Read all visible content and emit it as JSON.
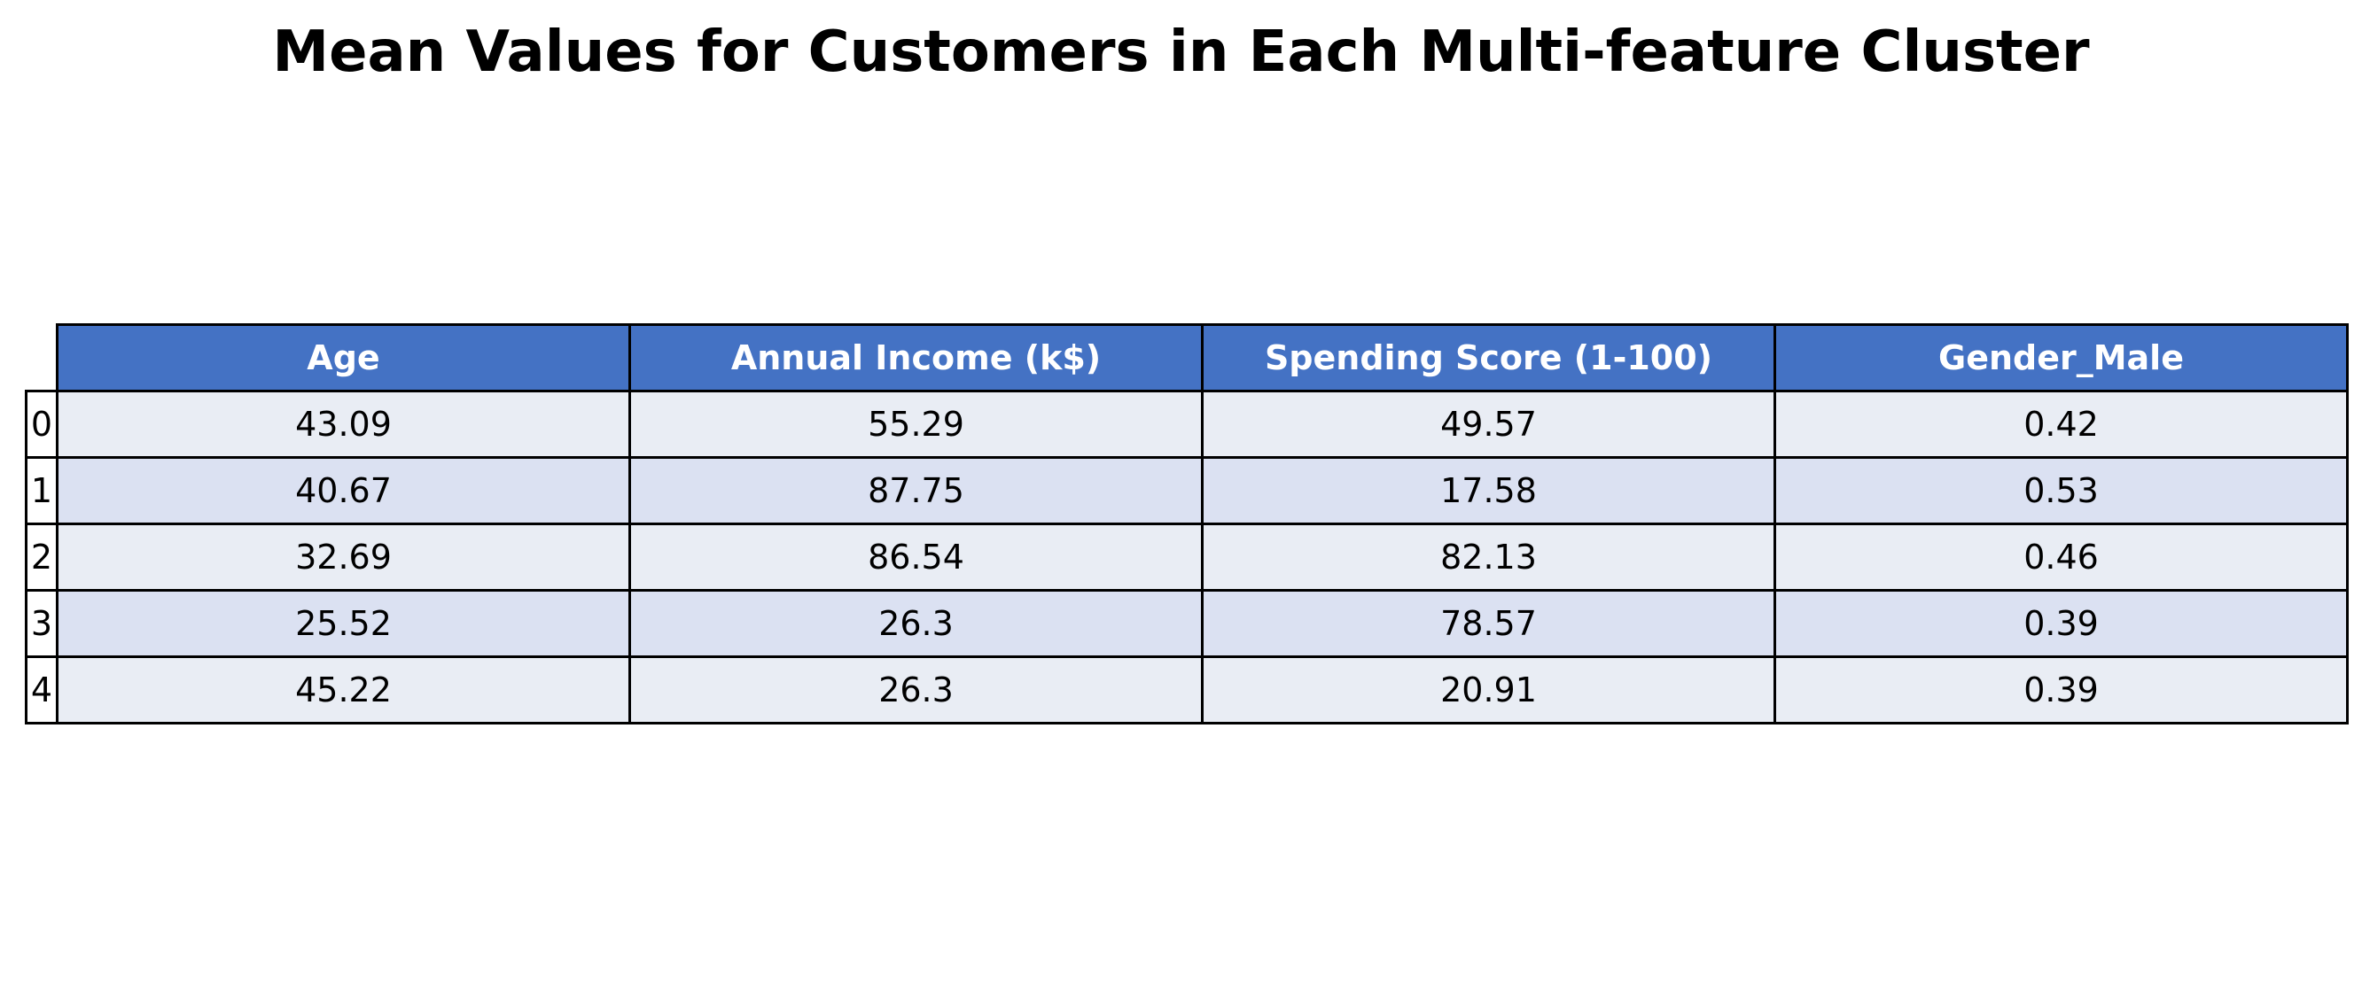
{
  "chart_data": {
    "type": "table",
    "title": "Mean Values for Customers in Each Multi-feature Cluster",
    "columns": [
      "Age",
      "Annual Income (k$)",
      "Spending Score (1-100)",
      "Gender_Male"
    ],
    "row_labels": [
      "0",
      "1",
      "2",
      "3",
      "4"
    ],
    "rows": [
      [
        "43.09",
        "55.29",
        "49.57",
        "0.42"
      ],
      [
        "40.67",
        "87.75",
        "17.58",
        "0.53"
      ],
      [
        "32.69",
        "86.54",
        "82.13",
        "0.46"
      ],
      [
        "25.52",
        "26.3",
        "78.57",
        "0.39"
      ],
      [
        "45.22",
        "26.3",
        "20.91",
        "0.39"
      ]
    ],
    "colors": {
      "header_bg": "#4472c4",
      "header_text": "#ffffff",
      "row_bg_a": "#e9edf4",
      "row_bg_b": "#dbe1f2"
    }
  }
}
